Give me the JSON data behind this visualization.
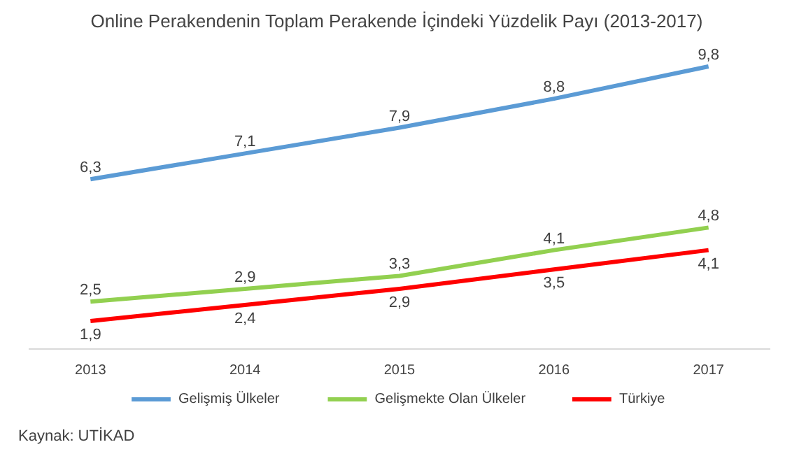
{
  "chart_data": {
    "type": "line",
    "title": "Online Perakendenin Toplam Perakende İçindeki Yüzdelik Payı  (2013-2017)",
    "x": [
      2013,
      2014,
      2015,
      2016,
      2017
    ],
    "xlim": [
      2012.6,
      2017.4
    ],
    "xticks": [
      2013,
      2014,
      2015,
      2016,
      2017
    ],
    "tick_labels": "x",
    "series": [
      {
        "name": "Gelişmiş Ülkeler",
        "color": "#5b9bd5",
        "values": [
          6.3,
          7.1,
          7.9,
          8.8,
          9.8
        ],
        "value_labels": [
          "6,3",
          "7,1",
          "7,9",
          "8,8",
          "9,8"
        ]
      },
      {
        "name": "Gelişmekte Olan Ülkeler",
        "color": "#92d050",
        "values": [
          2.5,
          2.9,
          3.3,
          4.1,
          4.8
        ],
        "value_labels": [
          "2,5",
          "2,9",
          "3,3",
          "4,1",
          "4,8"
        ]
      },
      {
        "name": "Türkiye",
        "color": "#ff0000",
        "values": [
          1.9,
          2.4,
          2.9,
          3.5,
          4.1
        ],
        "value_labels": [
          "1,9",
          "2,4",
          "2,9",
          "3,5",
          "4,1"
        ]
      }
    ],
    "legend": "bottom",
    "annotations": [
      "Kaynak: UTİKAD"
    ]
  }
}
